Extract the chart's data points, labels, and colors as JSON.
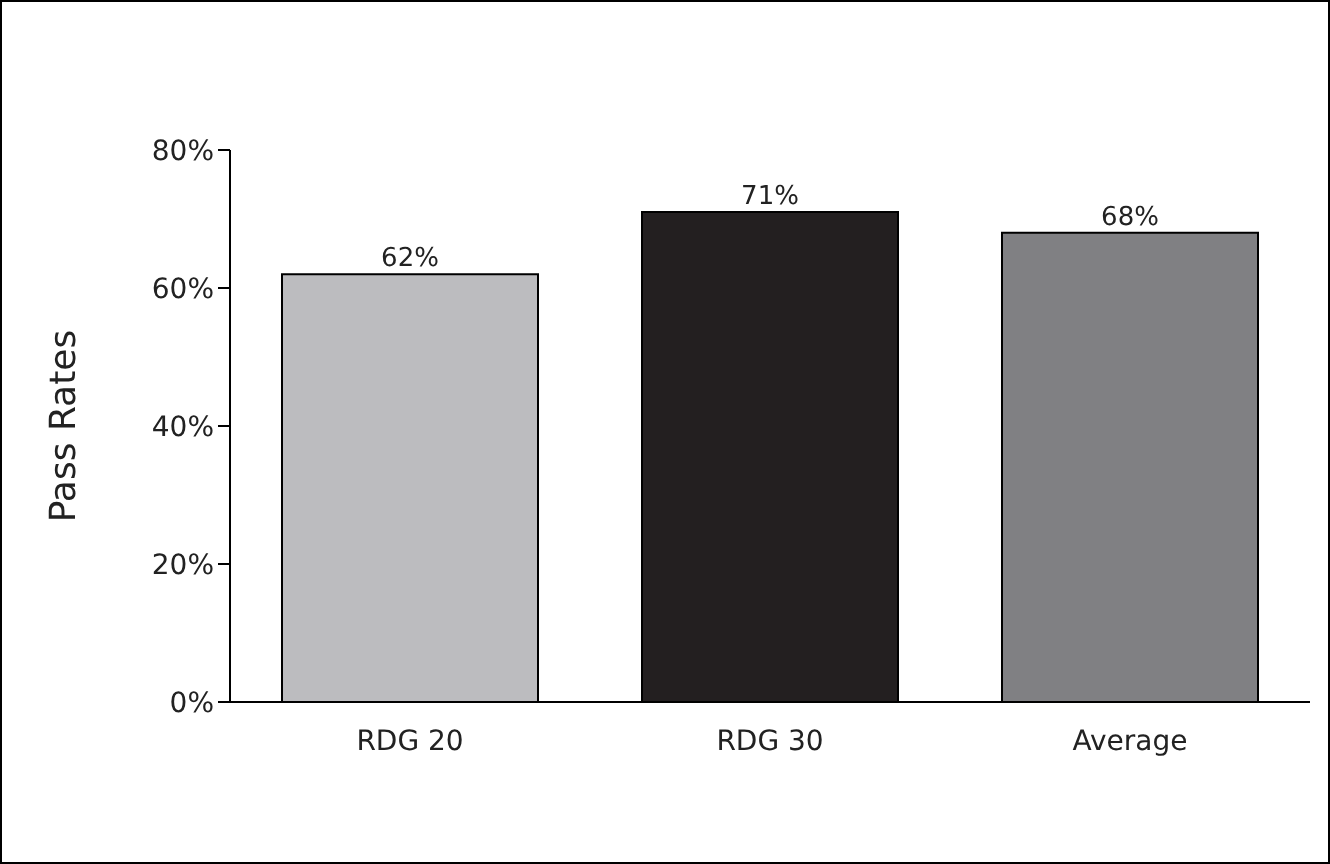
{
  "chart_data": {
    "type": "bar",
    "ylabel": "Pass Rates",
    "categories": [
      "RDG 20",
      "RDG 30",
      "Average"
    ],
    "values": [
      62,
      71,
      68
    ],
    "colors": [
      "#bcbcbf",
      "#231f20",
      "#808083"
    ],
    "value_labels": [
      "62%",
      "71%",
      "68%"
    ],
    "ylim": [
      0,
      80
    ],
    "yticks": [
      {
        "value": 0,
        "label": "0%"
      },
      {
        "value": 20,
        "label": "20%"
      },
      {
        "value": 40,
        "label": "40%"
      },
      {
        "value": 60,
        "label": "60%"
      },
      {
        "value": 80,
        "label": "80%"
      }
    ],
    "grid": false,
    "legend": false
  }
}
